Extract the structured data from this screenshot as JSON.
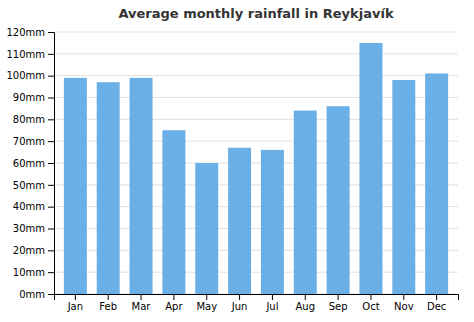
{
  "chart_data": {
    "type": "bar",
    "title": "Average monthly rainfall in Reykjavík",
    "categories": [
      "Jan",
      "Feb",
      "Mar",
      "Apr",
      "May",
      "Jun",
      "Jul",
      "Aug",
      "Sep",
      "Oct",
      "Nov",
      "Dec"
    ],
    "values": [
      99,
      97,
      99,
      75,
      60,
      67,
      66,
      84,
      86,
      115,
      98,
      101
    ],
    "color": "#6aafe6",
    "ylim": [
      0,
      120
    ],
    "yticks": [
      {
        "value": 0,
        "label": "0mm"
      },
      {
        "value": 10,
        "label": "10mm"
      },
      {
        "value": 20,
        "label": "20mm"
      },
      {
        "value": 30,
        "label": "30mm"
      },
      {
        "value": 40,
        "label": "40mm"
      },
      {
        "value": 50,
        "label": "50mm"
      },
      {
        "value": 60,
        "label": "60mm"
      },
      {
        "value": 70,
        "label": "70mm"
      },
      {
        "value": 80,
        "label": "80mm"
      },
      {
        "value": 90,
        "label": "90mm"
      },
      {
        "value": 100,
        "label": "100mm"
      },
      {
        "value": 110,
        "label": "110mm"
      },
      {
        "value": 120,
        "label": "120mm"
      }
    ],
    "grid": true
  }
}
